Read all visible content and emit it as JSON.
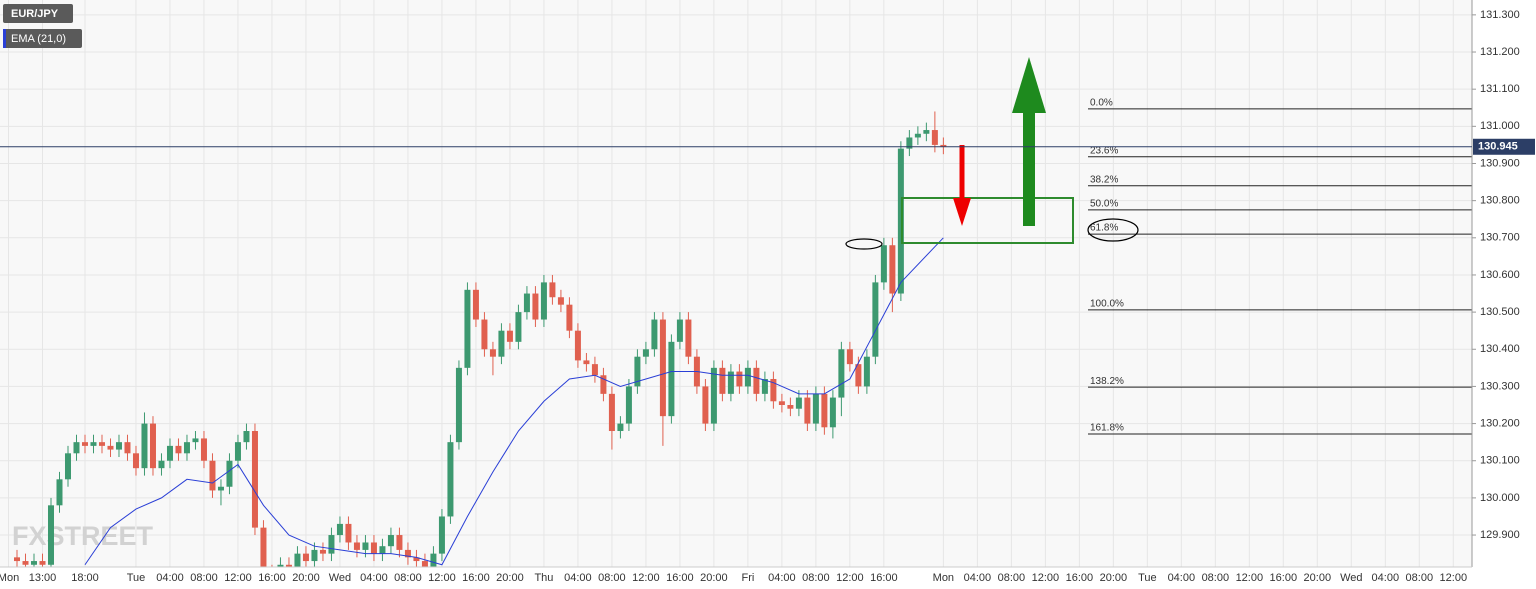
{
  "chart_data": {
    "type": "candlestick",
    "title": "EUR/JPY",
    "watermark": "FXSTREET",
    "up_color": "#3d9970",
    "down_color": "#e0604f",
    "x": [
      1,
      2,
      3,
      4,
      5,
      6,
      7,
      8,
      9,
      10,
      11,
      12,
      13,
      14,
      15,
      16,
      17,
      18,
      19,
      20,
      21,
      22,
      23,
      24,
      25,
      26,
      27,
      28,
      29,
      30,
      31,
      32,
      33,
      34,
      35,
      36,
      37,
      38,
      39,
      40,
      41,
      42,
      43,
      44,
      45,
      46,
      47,
      48,
      49,
      50,
      51,
      52,
      53,
      54,
      55,
      56,
      57,
      58,
      59,
      60,
      61,
      62,
      63,
      64,
      65,
      66,
      67,
      68,
      69,
      70,
      71,
      72,
      73,
      74,
      75,
      76,
      77,
      78,
      79,
      80,
      81,
      82,
      83,
      84,
      85,
      86,
      87,
      88,
      89,
      90,
      91,
      92,
      93,
      94,
      95,
      96,
      97,
      98,
      99,
      100,
      101,
      102,
      103,
      104,
      105,
      106,
      107,
      108,
      109,
      110
    ],
    "open": [
      129.84,
      129.83,
      129.82,
      129.83,
      129.82,
      129.98,
      130.05,
      130.12,
      130.15,
      130.14,
      130.15,
      130.14,
      130.13,
      130.15,
      130.12,
      130.08,
      130.2,
      130.08,
      130.1,
      130.14,
      130.12,
      130.15,
      130.16,
      130.1,
      130.02,
      130.03,
      130.1,
      130.15,
      130.18,
      129.92,
      129.8,
      129.78,
      129.82,
      129.8,
      129.85,
      129.83,
      129.86,
      129.85,
      129.9,
      129.93,
      129.88,
      129.86,
      129.88,
      129.85,
      129.87,
      129.9,
      129.86,
      129.84,
      129.83,
      129.8,
      129.85,
      129.95,
      130.15,
      130.35,
      130.56,
      130.48,
      130.4,
      130.38,
      130.45,
      130.42,
      130.5,
      130.55,
      130.48,
      130.58,
      130.54,
      130.52,
      130.45,
      130.37,
      130.36,
      130.33,
      130.28,
      130.18,
      130.2,
      130.3,
      130.38,
      130.4,
      130.48,
      130.22,
      130.42,
      130.48,
      130.38,
      130.3,
      130.2,
      130.35,
      130.28,
      130.34,
      130.3,
      130.35,
      130.28,
      130.32,
      130.26,
      130.25,
      130.24,
      130.27,
      130.2,
      130.28,
      130.19,
      130.27,
      130.4,
      130.36,
      130.3,
      130.38,
      130.58,
      130.68,
      130.55,
      130.94,
      130.97,
      130.98,
      130.99,
      130.95
    ],
    "high": [
      129.86,
      129.85,
      129.85,
      129.85,
      130.0,
      130.07,
      130.14,
      130.17,
      130.17,
      130.17,
      130.17,
      130.16,
      130.17,
      130.17,
      130.14,
      130.23,
      130.22,
      130.12,
      130.16,
      130.16,
      130.17,
      130.18,
      130.18,
      130.12,
      130.05,
      130.12,
      130.17,
      130.2,
      130.2,
      129.94,
      129.82,
      129.84,
      129.84,
      129.87,
      129.87,
      129.88,
      129.88,
      129.92,
      129.95,
      129.95,
      129.9,
      129.9,
      129.9,
      129.89,
      129.92,
      129.92,
      129.88,
      129.86,
      129.85,
      129.87,
      129.97,
      130.17,
      130.37,
      130.58,
      130.58,
      130.5,
      130.42,
      130.47,
      130.47,
      130.52,
      130.57,
      130.57,
      130.6,
      130.6,
      130.56,
      130.54,
      130.47,
      130.39,
      130.38,
      130.35,
      130.3,
      130.22,
      130.32,
      130.4,
      130.42,
      130.5,
      130.5,
      130.44,
      130.5,
      130.5,
      130.4,
      130.32,
      130.37,
      130.37,
      130.36,
      130.36,
      130.37,
      130.37,
      130.34,
      130.34,
      130.28,
      130.27,
      130.29,
      130.29,
      130.3,
      130.3,
      130.29,
      130.42,
      130.42,
      130.38,
      130.4,
      130.6,
      130.7,
      130.7,
      130.96,
      130.99,
      131.0,
      131.01,
      131.04,
      130.97
    ],
    "low": [
      129.81,
      129.8,
      129.8,
      129.8,
      129.8,
      129.96,
      130.03,
      130.1,
      130.12,
      130.12,
      130.12,
      130.11,
      130.11,
      130.1,
      130.06,
      130.06,
      130.06,
      130.06,
      130.08,
      130.1,
      130.1,
      130.13,
      130.08,
      130.0,
      129.98,
      130.01,
      130.08,
      130.13,
      129.9,
      129.78,
      129.76,
      129.76,
      129.78,
      129.78,
      129.81,
      129.81,
      129.83,
      129.83,
      129.88,
      129.86,
      129.84,
      129.84,
      129.83,
      129.83,
      129.85,
      129.84,
      129.82,
      129.81,
      129.78,
      129.78,
      129.83,
      129.93,
      130.13,
      130.33,
      130.46,
      130.38,
      130.33,
      130.36,
      130.4,
      130.4,
      130.48,
      130.46,
      130.46,
      130.52,
      130.5,
      130.43,
      130.35,
      130.34,
      130.31,
      130.26,
      130.13,
      130.16,
      130.18,
      130.28,
      130.36,
      130.38,
      130.14,
      130.2,
      130.4,
      130.36,
      130.28,
      130.18,
      130.18,
      130.26,
      130.26,
      130.28,
      130.28,
      130.26,
      130.26,
      130.24,
      130.23,
      130.22,
      130.22,
      130.18,
      130.18,
      130.17,
      130.16,
      130.22,
      130.34,
      130.28,
      130.28,
      130.36,
      130.56,
      130.5,
      130.53,
      130.92,
      130.95,
      130.96,
      130.93,
      130.925
    ],
    "close": [
      129.83,
      129.82,
      129.83,
      129.82,
      129.98,
      130.05,
      130.12,
      130.15,
      130.14,
      130.15,
      130.14,
      130.13,
      130.15,
      130.12,
      130.08,
      130.2,
      130.08,
      130.1,
      130.14,
      130.12,
      130.15,
      130.16,
      130.1,
      130.02,
      130.03,
      130.1,
      130.15,
      130.18,
      129.92,
      129.8,
      129.78,
      129.82,
      129.8,
      129.85,
      129.83,
      129.86,
      129.85,
      129.9,
      129.93,
      129.88,
      129.86,
      129.88,
      129.85,
      129.87,
      129.9,
      129.86,
      129.84,
      129.83,
      129.8,
      129.85,
      129.95,
      130.15,
      130.35,
      130.56,
      130.48,
      130.4,
      130.38,
      130.45,
      130.42,
      130.5,
      130.55,
      130.48,
      130.58,
      130.54,
      130.52,
      130.45,
      130.37,
      130.36,
      130.33,
      130.28,
      130.18,
      130.2,
      130.3,
      130.38,
      130.4,
      130.48,
      130.22,
      130.42,
      130.48,
      130.38,
      130.3,
      130.2,
      130.35,
      130.28,
      130.34,
      130.3,
      130.35,
      130.28,
      130.32,
      130.26,
      130.25,
      130.24,
      130.27,
      130.2,
      130.28,
      130.19,
      130.27,
      130.4,
      130.36,
      130.3,
      130.38,
      130.58,
      130.68,
      130.55,
      130.94,
      130.97,
      130.98,
      130.99,
      130.95,
      130.945
    ],
    "ema": {
      "name": "EMA (21,0)",
      "color": "#2a3fd6",
      "x": [
        9,
        12,
        15,
        18,
        21,
        24,
        27,
        30,
        33,
        36,
        39,
        42,
        45,
        48,
        51,
        54,
        57,
        60,
        63,
        66,
        69,
        72,
        75,
        78,
        81,
        84,
        87,
        90,
        93,
        96,
        99,
        102,
        105,
        110
      ],
      "values": [
        129.82,
        129.92,
        129.97,
        130.0,
        130.05,
        130.04,
        130.09,
        129.98,
        129.9,
        129.87,
        129.86,
        129.85,
        129.85,
        129.84,
        129.82,
        129.95,
        130.07,
        130.18,
        130.26,
        130.32,
        130.33,
        130.3,
        130.32,
        130.34,
        130.34,
        130.33,
        130.33,
        130.31,
        130.28,
        130.28,
        130.32,
        130.45,
        130.58,
        130.7
      ]
    },
    "last_price": 130.945,
    "fibonacci": {
      "levels": [
        {
          "label": "0.0%",
          "value": 131.047
        },
        {
          "label": "23.6%",
          "value": 130.918
        },
        {
          "label": "38.2%",
          "value": 130.84
        },
        {
          "label": "50.0%",
          "value": 130.775
        },
        {
          "label": "61.8%",
          "value": 130.71
        },
        {
          "label": "100.0%",
          "value": 130.506
        },
        {
          "label": "138.2%",
          "value": 130.298
        },
        {
          "label": "161.8%",
          "value": 130.172
        }
      ]
    },
    "xlim": [
      -1,
      172.2
    ],
    "xticks": [
      {
        "value": 0,
        "label": "Mon"
      },
      {
        "value": 4,
        "label": "13:00"
      },
      {
        "value": 9,
        "label": "18:00"
      },
      {
        "value": 15,
        "label": "Tue"
      },
      {
        "value": 19,
        "label": "04:00"
      },
      {
        "value": 23,
        "label": "08:00"
      },
      {
        "value": 27,
        "label": "12:00"
      },
      {
        "value": 31,
        "label": "16:00"
      },
      {
        "value": 35,
        "label": "20:00"
      },
      {
        "value": 39,
        "label": "Wed"
      },
      {
        "value": 43,
        "label": "04:00"
      },
      {
        "value": 47,
        "label": "08:00"
      },
      {
        "value": 51,
        "label": "12:00"
      },
      {
        "value": 55,
        "label": "16:00"
      },
      {
        "value": 59,
        "label": "20:00"
      },
      {
        "value": 63,
        "label": "Thu"
      },
      {
        "value": 67,
        "label": "04:00"
      },
      {
        "value": 71,
        "label": "08:00"
      },
      {
        "value": 75,
        "label": "12:00"
      },
      {
        "value": 79,
        "label": "16:00"
      },
      {
        "value": 83,
        "label": "20:00"
      },
      {
        "value": 87,
        "label": "Fri"
      },
      {
        "value": 91,
        "label": "04:00"
      },
      {
        "value": 95,
        "label": "08:00"
      },
      {
        "value": 99,
        "label": "12:00"
      },
      {
        "value": 103,
        "label": "16:00"
      },
      {
        "value": 110,
        "label": "Mon"
      },
      {
        "value": 114,
        "label": "04:00"
      },
      {
        "value": 118,
        "label": "08:00"
      },
      {
        "value": 122,
        "label": "12:00"
      },
      {
        "value": 126,
        "label": "16:00"
      },
      {
        "value": 130,
        "label": "20:00"
      },
      {
        "value": 134,
        "label": "Tue"
      },
      {
        "value": 138,
        "label": "04:00"
      },
      {
        "value": 142,
        "label": "08:00"
      },
      {
        "value": 146,
        "label": "12:00"
      },
      {
        "value": 150,
        "label": "16:00"
      },
      {
        "value": 154,
        "label": "20:00"
      },
      {
        "value": 158,
        "label": "Wed"
      },
      {
        "value": 162,
        "label": "04:00"
      },
      {
        "value": 166,
        "label": "08:00"
      },
      {
        "value": 170,
        "label": "12:00"
      }
    ],
    "ylim": [
      129.814,
      131.34
    ],
    "yticks": [
      {
        "value": 129.9,
        "label": "129.900"
      },
      {
        "value": 130.0,
        "label": "130.000"
      },
      {
        "value": 130.1,
        "label": "130.100"
      },
      {
        "value": 130.2,
        "label": "130.200"
      },
      {
        "value": 130.3,
        "label": "130.300"
      },
      {
        "value": 130.4,
        "label": "130.400"
      },
      {
        "value": 130.5,
        "label": "130.500"
      },
      {
        "value": 130.6,
        "label": "130.600"
      },
      {
        "value": 130.7,
        "label": "130.700"
      },
      {
        "value": 130.8,
        "label": "130.800"
      },
      {
        "value": 130.9,
        "label": "130.900"
      },
      {
        "value": 131.0,
        "label": "131.000"
      },
      {
        "value": 131.1,
        "label": "131.100"
      },
      {
        "value": 131.2,
        "label": "131.200"
      },
      {
        "value": 131.3,
        "label": "131.300"
      }
    ],
    "grid": true
  }
}
